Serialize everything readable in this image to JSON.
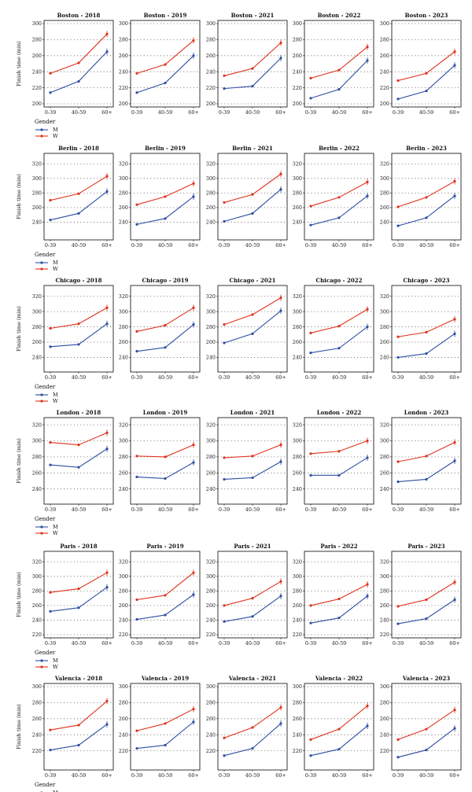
{
  "figure": {
    "ylabel": "Finish time (min)",
    "legend_title": "Gender",
    "series": [
      {
        "name": "M",
        "color": "#2e4ea1"
      },
      {
        "name": "W",
        "color": "#e0311c"
      }
    ],
    "categories": [
      "0-39",
      "40-59",
      "60+"
    ],
    "grid": "dotted horizontal",
    "legend_position": "below each row"
  },
  "chart_data": [
    {
      "type": "line",
      "city": "Boston",
      "title": "Boston - 2018",
      "ylim": [
        200,
        300
      ],
      "yticks": [
        200,
        220,
        240,
        260,
        280,
        300
      ],
      "categories": [
        "0-39",
        "40-59",
        "60+"
      ],
      "series": [
        {
          "name": "M",
          "values": [
            214,
            228,
            265
          ]
        },
        {
          "name": "W",
          "values": [
            238,
            251,
            287
          ]
        }
      ]
    },
    {
      "type": "line",
      "city": "Boston",
      "title": "Boston - 2019",
      "ylim": [
        200,
        300
      ],
      "yticks": [
        200,
        220,
        240,
        260,
        280,
        300
      ],
      "categories": [
        "0-39",
        "40-59",
        "60+"
      ],
      "series": [
        {
          "name": "M",
          "values": [
            214,
            226,
            260
          ]
        },
        {
          "name": "W",
          "values": [
            238,
            249,
            279
          ]
        }
      ]
    },
    {
      "type": "line",
      "city": "Boston",
      "title": "Boston - 2021",
      "ylim": [
        200,
        300
      ],
      "yticks": [
        200,
        220,
        240,
        260,
        280,
        300
      ],
      "categories": [
        "0-39",
        "40-59",
        "60+"
      ],
      "series": [
        {
          "name": "M",
          "values": [
            219,
            222,
            257
          ]
        },
        {
          "name": "W",
          "values": [
            235,
            244,
            276
          ]
        }
      ]
    },
    {
      "type": "line",
      "city": "Boston",
      "title": "Boston - 2022",
      "ylim": [
        200,
        300
      ],
      "yticks": [
        200,
        220,
        240,
        260,
        280,
        300
      ],
      "categories": [
        "0-39",
        "40-59",
        "60+"
      ],
      "series": [
        {
          "name": "M",
          "values": [
            207,
            218,
            254
          ]
        },
        {
          "name": "W",
          "values": [
            232,
            242,
            271
          ]
        }
      ]
    },
    {
      "type": "line",
      "city": "Boston",
      "title": "Boston - 2023",
      "ylim": [
        200,
        300
      ],
      "yticks": [
        200,
        220,
        240,
        260,
        280,
        300
      ],
      "categories": [
        "0-39",
        "40-59",
        "60+"
      ],
      "series": [
        {
          "name": "M",
          "values": [
            206,
            216,
            248
          ]
        },
        {
          "name": "W",
          "values": [
            229,
            238,
            265
          ]
        }
      ]
    },
    {
      "type": "line",
      "city": "Berlin",
      "title": "Berlin - 2018",
      "ylim": [
        220,
        330
      ],
      "yticks": [
        240,
        260,
        280,
        300,
        320
      ],
      "categories": [
        "0-39",
        "40-59",
        "60+"
      ],
      "series": [
        {
          "name": "M",
          "values": [
            243,
            252,
            282
          ]
        },
        {
          "name": "W",
          "values": [
            270,
            279,
            303
          ]
        }
      ]
    },
    {
      "type": "line",
      "city": "Berlin",
      "title": "Berlin - 2019",
      "ylim": [
        220,
        330
      ],
      "yticks": [
        240,
        260,
        280,
        300,
        320
      ],
      "categories": [
        "0-39",
        "40-59",
        "60+"
      ],
      "series": [
        {
          "name": "M",
          "values": [
            237,
            245,
            275
          ]
        },
        {
          "name": "W",
          "values": [
            264,
            275,
            293
          ]
        }
      ]
    },
    {
      "type": "line",
      "city": "Berlin",
      "title": "Berlin - 2021",
      "ylim": [
        220,
        330
      ],
      "yticks": [
        240,
        260,
        280,
        300,
        320
      ],
      "categories": [
        "0-39",
        "40-59",
        "60+"
      ],
      "series": [
        {
          "name": "M",
          "values": [
            241,
            252,
            285
          ]
        },
        {
          "name": "W",
          "values": [
            267,
            278,
            306
          ]
        }
      ]
    },
    {
      "type": "line",
      "city": "Berlin",
      "title": "Berlin - 2022",
      "ylim": [
        220,
        330
      ],
      "yticks": [
        240,
        260,
        280,
        300,
        320
      ],
      "categories": [
        "0-39",
        "40-59",
        "60+"
      ],
      "series": [
        {
          "name": "M",
          "values": [
            236,
            246,
            276
          ]
        },
        {
          "name": "W",
          "values": [
            262,
            274,
            295
          ]
        }
      ]
    },
    {
      "type": "line",
      "city": "Berlin",
      "title": "Berlin - 2023",
      "ylim": [
        220,
        330
      ],
      "yticks": [
        240,
        260,
        280,
        300,
        320
      ],
      "categories": [
        "0-39",
        "40-59",
        "60+"
      ],
      "series": [
        {
          "name": "M",
          "values": [
            235,
            246,
            276
          ]
        },
        {
          "name": "W",
          "values": [
            261,
            274,
            296
          ]
        }
      ]
    },
    {
      "type": "line",
      "city": "Chicago",
      "title": "Chicago - 2018",
      "ylim": [
        225,
        330
      ],
      "yticks": [
        240,
        260,
        280,
        300,
        320
      ],
      "categories": [
        "0-39",
        "40-59",
        "60+"
      ],
      "series": [
        {
          "name": "M",
          "values": [
            254,
            257,
            284
          ]
        },
        {
          "name": "W",
          "values": [
            278,
            284,
            305
          ]
        }
      ]
    },
    {
      "type": "line",
      "city": "Chicago",
      "title": "Chicago - 2019",
      "ylim": [
        225,
        330
      ],
      "yticks": [
        240,
        260,
        280,
        300,
        320
      ],
      "categories": [
        "0-39",
        "40-59",
        "60+"
      ],
      "series": [
        {
          "name": "M",
          "values": [
            248,
            253,
            283
          ]
        },
        {
          "name": "W",
          "values": [
            274,
            282,
            305
          ]
        }
      ]
    },
    {
      "type": "line",
      "city": "Chicago",
      "title": "Chicago - 2021",
      "ylim": [
        225,
        330
      ],
      "yticks": [
        240,
        260,
        280,
        300,
        320
      ],
      "categories": [
        "0-39",
        "40-59",
        "60+"
      ],
      "series": [
        {
          "name": "M",
          "values": [
            259,
            271,
            301
          ]
        },
        {
          "name": "W",
          "values": [
            283,
            296,
            318
          ]
        }
      ]
    },
    {
      "type": "line",
      "city": "Chicago",
      "title": "Chicago - 2022",
      "ylim": [
        225,
        330
      ],
      "yticks": [
        240,
        260,
        280,
        300,
        320
      ],
      "categories": [
        "0-39",
        "40-59",
        "60+"
      ],
      "series": [
        {
          "name": "M",
          "values": [
            246,
            252,
            280
          ]
        },
        {
          "name": "W",
          "values": [
            272,
            281,
            303
          ]
        }
      ]
    },
    {
      "type": "line",
      "city": "Chicago",
      "title": "Chicago - 2023",
      "ylim": [
        225,
        330
      ],
      "yticks": [
        240,
        260,
        280,
        300,
        320
      ],
      "categories": [
        "0-39",
        "40-59",
        "60+"
      ],
      "series": [
        {
          "name": "M",
          "values": [
            240,
            245,
            271
          ]
        },
        {
          "name": "W",
          "values": [
            267,
            273,
            290
          ]
        }
      ]
    },
    {
      "type": "line",
      "city": "London",
      "title": "London - 2018",
      "ylim": [
        225,
        325
      ],
      "yticks": [
        240,
        260,
        280,
        300,
        320
      ],
      "categories": [
        "0-39",
        "40-59",
        "60+"
      ],
      "series": [
        {
          "name": "M",
          "values": [
            270,
            267,
            290
          ]
        },
        {
          "name": "W",
          "values": [
            298,
            295,
            310
          ]
        }
      ]
    },
    {
      "type": "line",
      "city": "London",
      "title": "London - 2019",
      "ylim": [
        225,
        325
      ],
      "yticks": [
        240,
        260,
        280,
        300,
        320
      ],
      "categories": [
        "0-39",
        "40-59",
        "60+"
      ],
      "series": [
        {
          "name": "M",
          "values": [
            255,
            253,
            273
          ]
        },
        {
          "name": "W",
          "values": [
            281,
            280,
            295
          ]
        }
      ]
    },
    {
      "type": "line",
      "city": "London",
      "title": "London - 2021",
      "ylim": [
        225,
        325
      ],
      "yticks": [
        240,
        260,
        280,
        300,
        320
      ],
      "categories": [
        "0-39",
        "40-59",
        "60+"
      ],
      "series": [
        {
          "name": "M",
          "values": [
            252,
            254,
            274
          ]
        },
        {
          "name": "W",
          "values": [
            279,
            281,
            295
          ]
        }
      ]
    },
    {
      "type": "line",
      "city": "London",
      "title": "London - 2022",
      "ylim": [
        225,
        325
      ],
      "yticks": [
        240,
        260,
        280,
        300,
        320
      ],
      "categories": [
        "0-39",
        "40-59",
        "60+"
      ],
      "series": [
        {
          "name": "M",
          "values": [
            257,
            257,
            279
          ]
        },
        {
          "name": "W",
          "values": [
            284,
            287,
            300
          ]
        }
      ]
    },
    {
      "type": "line",
      "city": "London",
      "title": "London - 2023",
      "ylim": [
        225,
        325
      ],
      "yticks": [
        240,
        260,
        280,
        300,
        320
      ],
      "categories": [
        "0-39",
        "40-59",
        "60+"
      ],
      "series": [
        {
          "name": "M",
          "values": [
            249,
            252,
            275
          ]
        },
        {
          "name": "W",
          "values": [
            274,
            281,
            298
          ]
        }
      ]
    },
    {
      "type": "line",
      "city": "Paris",
      "title": "Paris - 2018",
      "ylim": [
        220,
        330
      ],
      "yticks": [
        220,
        240,
        260,
        280,
        300,
        320
      ],
      "categories": [
        "0-39",
        "40-59",
        "60+"
      ],
      "series": [
        {
          "name": "M",
          "values": [
            252,
            257,
            285
          ]
        },
        {
          "name": "W",
          "values": [
            278,
            283,
            305
          ]
        }
      ]
    },
    {
      "type": "line",
      "city": "Paris",
      "title": "Paris - 2019",
      "ylim": [
        220,
        330
      ],
      "yticks": [
        220,
        240,
        260,
        280,
        300,
        320
      ],
      "categories": [
        "0-39",
        "40-59",
        "60+"
      ],
      "series": [
        {
          "name": "M",
          "values": [
            241,
            247,
            275
          ]
        },
        {
          "name": "W",
          "values": [
            268,
            274,
            305
          ]
        }
      ]
    },
    {
      "type": "line",
      "city": "Paris",
      "title": "Paris - 2021",
      "ylim": [
        220,
        330
      ],
      "yticks": [
        220,
        240,
        260,
        280,
        300,
        320
      ],
      "categories": [
        "0-39",
        "40-59",
        "60+"
      ],
      "series": [
        {
          "name": "M",
          "values": [
            238,
            245,
            273
          ]
        },
        {
          "name": "W",
          "values": [
            260,
            270,
            293
          ]
        }
      ]
    },
    {
      "type": "line",
      "city": "Paris",
      "title": "Paris - 2022",
      "ylim": [
        220,
        330
      ],
      "yticks": [
        220,
        240,
        260,
        280,
        300,
        320
      ],
      "categories": [
        "0-39",
        "40-59",
        "60+"
      ],
      "series": [
        {
          "name": "M",
          "values": [
            236,
            243,
            273
          ]
        },
        {
          "name": "W",
          "values": [
            260,
            269,
            289
          ]
        }
      ]
    },
    {
      "type": "line",
      "city": "Paris",
      "title": "Paris - 2023",
      "ylim": [
        220,
        330
      ],
      "yticks": [
        220,
        240,
        260,
        280,
        300,
        320
      ],
      "categories": [
        "0-39",
        "40-59",
        "60+"
      ],
      "series": [
        {
          "name": "M",
          "values": [
            235,
            242,
            268
          ]
        },
        {
          "name": "W",
          "values": [
            259,
            268,
            292
          ]
        }
      ]
    },
    {
      "type": "line",
      "city": "Valencia",
      "title": "Valencia - 2018",
      "ylim": [
        200,
        300
      ],
      "yticks": [
        220,
        240,
        260,
        280,
        300
      ],
      "categories": [
        "0-39",
        "40-59",
        "60+"
      ],
      "series": [
        {
          "name": "M",
          "values": [
            221,
            227,
            253
          ]
        },
        {
          "name": "W",
          "values": [
            246,
            252,
            282
          ]
        }
      ]
    },
    {
      "type": "line",
      "city": "Valencia",
      "title": "Valencia - 2019",
      "ylim": [
        200,
        300
      ],
      "yticks": [
        220,
        240,
        260,
        280,
        300
      ],
      "categories": [
        "0-39",
        "40-59",
        "60+"
      ],
      "series": [
        {
          "name": "M",
          "values": [
            223,
            227,
            256
          ]
        },
        {
          "name": "W",
          "values": [
            245,
            254,
            272
          ]
        }
      ]
    },
    {
      "type": "line",
      "city": "Valencia",
      "title": "Valencia - 2021",
      "ylim": [
        200,
        300
      ],
      "yticks": [
        220,
        240,
        260,
        280,
        300
      ],
      "categories": [
        "0-39",
        "40-59",
        "60+"
      ],
      "series": [
        {
          "name": "M",
          "values": [
            214,
            223,
            254
          ]
        },
        {
          "name": "W",
          "values": [
            236,
            249,
            274
          ]
        }
      ]
    },
    {
      "type": "line",
      "city": "Valencia",
      "title": "Valencia - 2022",
      "ylim": [
        200,
        300
      ],
      "yticks": [
        220,
        240,
        260,
        280,
        300
      ],
      "categories": [
        "0-39",
        "40-59",
        "60+"
      ],
      "series": [
        {
          "name": "M",
          "values": [
            214,
            222,
            251
          ]
        },
        {
          "name": "W",
          "values": [
            234,
            247,
            276
          ]
        }
      ]
    },
    {
      "type": "line",
      "city": "Valencia",
      "title": "Valencia - 2023",
      "ylim": [
        200,
        300
      ],
      "yticks": [
        220,
        240,
        260,
        280,
        300
      ],
      "categories": [
        "0-39",
        "40-59",
        "60+"
      ],
      "series": [
        {
          "name": "M",
          "values": [
            212,
            221,
            248
          ]
        },
        {
          "name": "W",
          "values": [
            234,
            247,
            271
          ]
        }
      ]
    }
  ]
}
